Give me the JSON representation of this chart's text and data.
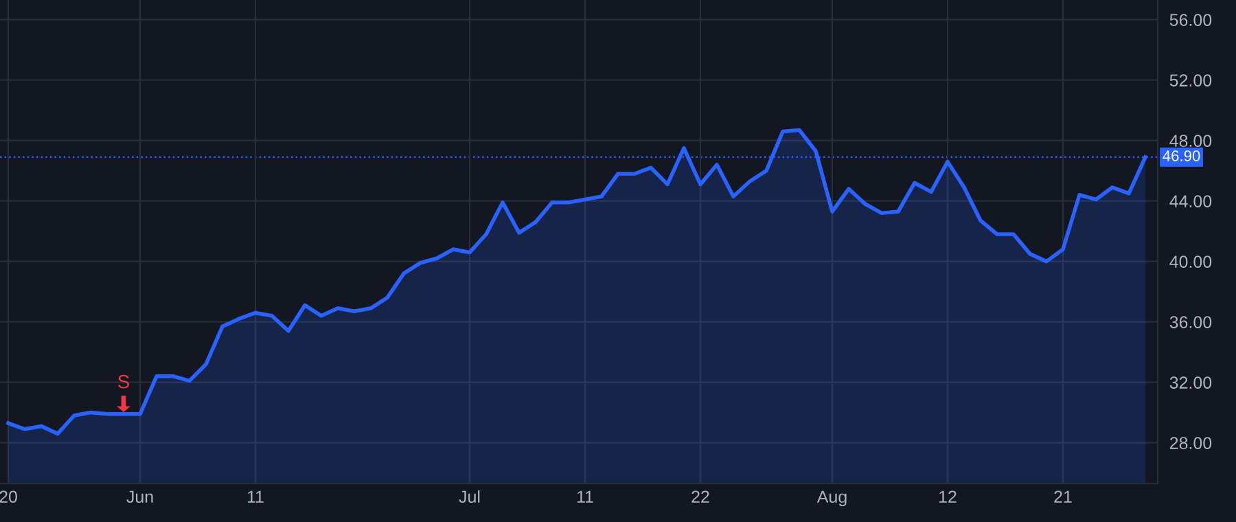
{
  "chart_data": {
    "type": "area",
    "categories": [
      "20",
      null,
      null,
      null,
      null,
      null,
      null,
      null,
      "Jun",
      null,
      null,
      null,
      null,
      null,
      null,
      "11",
      null,
      null,
      null,
      null,
      null,
      null,
      null,
      null,
      null,
      null,
      null,
      null,
      "Jul",
      null,
      null,
      null,
      null,
      null,
      null,
      "11",
      null,
      null,
      null,
      null,
      null,
      null,
      "22",
      null,
      null,
      null,
      null,
      null,
      null,
      null,
      "Aug",
      null,
      null,
      null,
      null,
      null,
      null,
      "12",
      null,
      null,
      null,
      null,
      null,
      null,
      "21",
      null,
      null,
      null,
      null,
      null
    ],
    "series": [
      {
        "color": "#2962ff",
        "values": [
          29.3,
          28.9,
          29.1,
          28.6,
          29.8,
          30.0,
          29.9,
          29.9,
          29.9,
          32.4,
          32.4,
          32.1,
          33.2,
          35.7,
          36.2,
          36.6,
          36.4,
          35.4,
          37.1,
          36.4,
          36.9,
          36.7,
          36.9,
          37.6,
          39.2,
          39.9,
          40.2,
          40.8,
          40.6,
          41.8,
          43.9,
          41.9,
          42.6,
          43.9,
          43.9,
          44.1,
          44.3,
          45.8,
          45.8,
          46.2,
          45.1,
          47.5,
          45.1,
          46.4,
          44.3,
          45.3,
          46.0,
          48.6,
          48.7,
          47.3,
          43.3,
          44.8,
          43.8,
          43.2,
          43.3,
          45.2,
          44.6,
          46.6,
          44.9,
          42.7,
          41.8,
          41.8,
          40.5,
          40.0,
          40.8,
          44.4,
          44.1,
          44.9,
          44.5,
          46.9
        ]
      }
    ],
    "ylim": [
      25.3,
      57.3
    ],
    "yticks": [
      {
        "value": 28,
        "label": "28.00"
      },
      {
        "value": 32,
        "label": "32.00"
      },
      {
        "value": 36,
        "label": "36.00"
      },
      {
        "value": 40,
        "label": "40.00"
      },
      {
        "value": 44,
        "label": "44.00"
      },
      {
        "value": 48,
        "label": "48.00"
      },
      {
        "value": 52,
        "label": "52.00"
      },
      {
        "value": 56,
        "label": "56.00"
      }
    ],
    "grid": true,
    "ref_lines": [
      {
        "axis": "y",
        "value": 46.9,
        "label": "46.90",
        "color": "#2962ff",
        "line_style": "dotted"
      }
    ],
    "annotations": [
      "S"
    ]
  }
}
